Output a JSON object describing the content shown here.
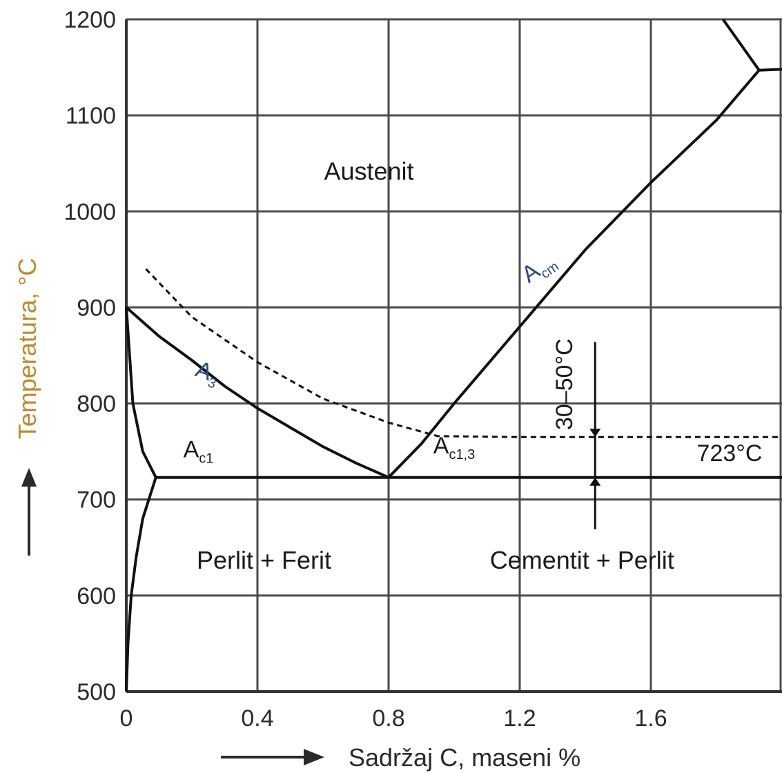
{
  "chart_data": {
    "type": "line",
    "title": "",
    "xlabel": "Sadržaj C, maseni %",
    "ylabel": "Temperatura, °C",
    "xlim": [
      0,
      2.0
    ],
    "ylim": [
      500,
      1200
    ],
    "x_ticks": [
      {
        "value": 0,
        "label": "0"
      },
      {
        "value": 0.4,
        "label": "0.4"
      },
      {
        "value": 0.8,
        "label": "0.8"
      },
      {
        "value": 1.2,
        "label": "1.2"
      },
      {
        "value": 1.6,
        "label": "1.6"
      }
    ],
    "y_ticks": [
      {
        "value": 500,
        "label": "500"
      },
      {
        "value": 600,
        "label": "600"
      },
      {
        "value": 700,
        "label": "700"
      },
      {
        "value": 800,
        "label": "800"
      },
      {
        "value": 900,
        "label": "900"
      },
      {
        "value": 1000,
        "label": "1000"
      },
      {
        "value": 1100,
        "label": "1100"
      },
      {
        "value": 1200,
        "label": "1200"
      }
    ],
    "grid": true,
    "series": [
      {
        "style": "solid",
        "points": [
          [
            0,
            900
          ],
          [
            0.1,
            870
          ],
          [
            0.2,
            845
          ],
          [
            0.3,
            818
          ],
          [
            0.4,
            795
          ],
          [
            0.5,
            775
          ],
          [
            0.6,
            755
          ],
          [
            0.7,
            738
          ],
          [
            0.8,
            723
          ]
        ]
      },
      {
        "style": "solid",
        "points": [
          [
            0.8,
            723
          ],
          [
            0.9,
            758
          ],
          [
            1.0,
            800
          ],
          [
            1.2,
            880
          ],
          [
            1.4,
            960
          ],
          [
            1.6,
            1030
          ],
          [
            1.8,
            1095
          ],
          [
            1.93,
            1147
          ]
        ]
      },
      {
        "style": "solid",
        "points": [
          [
            1.93,
            1147
          ],
          [
            2.0,
            1148
          ]
        ]
      },
      {
        "style": "solid",
        "points": [
          [
            1.93,
            1147
          ],
          [
            1.82,
            1200
          ]
        ]
      },
      {
        "style": "solid",
        "points": [
          [
            0.09,
            723
          ],
          [
            2.0,
            723
          ]
        ]
      },
      {
        "style": "solid",
        "points": [
          [
            0,
            900
          ],
          [
            0.01,
            850
          ],
          [
            0.02,
            800
          ],
          [
            0.05,
            750
          ],
          [
            0.09,
            723
          ]
        ]
      },
      {
        "style": "solid",
        "points": [
          [
            0.09,
            723
          ],
          [
            0.05,
            680
          ],
          [
            0.03,
            640
          ],
          [
            0.015,
            600
          ],
          [
            0.005,
            550
          ],
          [
            0,
            500
          ]
        ]
      },
      {
        "style": "dashed",
        "points": [
          [
            0.06,
            940
          ],
          [
            0.2,
            890
          ],
          [
            0.4,
            843
          ],
          [
            0.6,
            805
          ],
          [
            0.8,
            780
          ],
          [
            0.95,
            766
          ],
          [
            1.2,
            765
          ],
          [
            1.6,
            765
          ],
          [
            2.0,
            765
          ]
        ]
      }
    ],
    "regions": [
      {
        "label": "Austenit",
        "x": 0.74,
        "y": 1033
      },
      {
        "label": "Perlit + Ferit",
        "x": 0.42,
        "y": 628
      },
      {
        "label": "Cementit + Perlit",
        "x": 1.39,
        "y": 628
      }
    ],
    "annotations": [
      {
        "text": "A",
        "sub": "3",
        "x": 0.24,
        "y": 825,
        "color": "blue"
      },
      {
        "text": "A",
        "sub": "cm",
        "x": 1.27,
        "y": 935,
        "color": "blue"
      },
      {
        "text": "A",
        "sub": "c1",
        "x": 0.22,
        "y": 744,
        "color": "black"
      },
      {
        "text": "A",
        "sub": "c1,3",
        "x": 1.0,
        "y": 748,
        "color": "black"
      },
      {
        "text": "723°C",
        "x": 1.84,
        "y": 740,
        "color": "black"
      },
      {
        "text": "30–50°C",
        "x": 1.36,
        "y": 820,
        "color": "black",
        "rotate": -90
      }
    ]
  }
}
